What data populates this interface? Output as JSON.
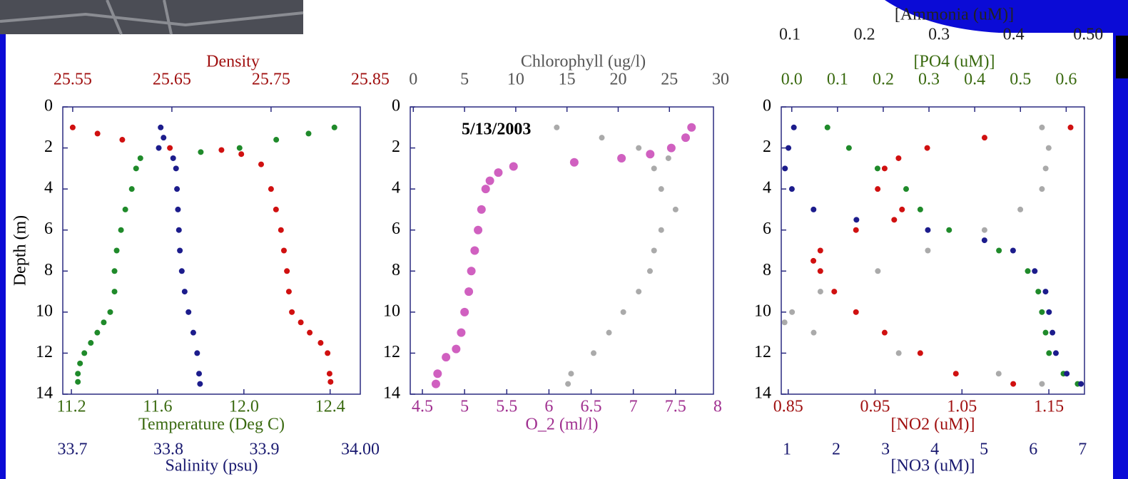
{
  "chart_data": [
    {
      "type": "scatter",
      "ylabel": "Depth (m)",
      "ylim": [
        0,
        14
      ],
      "yticks": [
        0,
        2,
        4,
        6,
        8,
        10,
        12,
        14
      ],
      "y_inverted": true,
      "series": [
        {
          "name": "Density",
          "color": "#d01010",
          "axis_color": "#a01010",
          "axis": "top",
          "xlim": [
            25.54,
            25.84
          ],
          "xticks": [
            25.55,
            25.65,
            25.75,
            25.85
          ],
          "y": [
            1,
            1.3,
            1.6,
            2,
            2.1,
            2.3,
            2.8,
            4,
            5,
            6,
            7,
            8,
            9,
            10,
            10.5,
            11,
            11.5,
            12,
            13,
            13.4
          ],
          "x": [
            25.55,
            25.575,
            25.6,
            25.648,
            25.7,
            25.72,
            25.74,
            25.75,
            25.755,
            25.76,
            25.763,
            25.766,
            25.768,
            25.771,
            25.78,
            25.789,
            25.8,
            25.807,
            25.809,
            25.81
          ]
        },
        {
          "name": "Temperature (Deg C)",
          "color": "#1f8a2a",
          "axis_color": "#3a6a10",
          "axis": "bottom",
          "xlim": [
            11.16,
            12.54
          ],
          "xticks": [
            11.2,
            11.6,
            {
              "value": 12,
              "label": "12.0"
            },
            12.4
          ],
          "y": [
            1,
            1.3,
            1.6,
            2,
            2.2,
            2.5,
            3,
            4,
            5,
            6,
            7,
            8,
            9,
            10,
            10.5,
            11,
            11.5,
            12,
            12.5,
            13,
            13.4
          ],
          "x": [
            12.42,
            12.3,
            12.15,
            11.98,
            11.8,
            11.52,
            11.5,
            11.48,
            11.45,
            11.43,
            11.41,
            11.4,
            11.4,
            11.38,
            11.35,
            11.32,
            11.29,
            11.26,
            11.24,
            11.23,
            11.23
          ]
        },
        {
          "name": "Salinity (psu)",
          "color": "#1c1c8c",
          "axis_color": "#1a1a70",
          "axis": "bottom",
          "xlim": [
            33.69,
            34.0
          ],
          "xticks": [
            33.7,
            33.8,
            33.9,
            {
              "value": 34,
              "label": "34.00"
            }
          ],
          "y": [
            1,
            1.5,
            2,
            2.5,
            3,
            4,
            5,
            6,
            7,
            8,
            9,
            10,
            11,
            12,
            13,
            13.5
          ],
          "x": [
            33.792,
            33.795,
            33.79,
            33.805,
            33.808,
            33.809,
            33.81,
            33.811,
            33.812,
            33.814,
            33.817,
            33.821,
            33.826,
            33.83,
            33.832,
            33.833
          ]
        }
      ]
    },
    {
      "type": "scatter",
      "ylim": [
        0,
        14
      ],
      "yticks": [
        0,
        2,
        4,
        6,
        8,
        10,
        12,
        14
      ],
      "y_inverted": true,
      "annotation": "5/13/2003",
      "series": [
        {
          "name": "Chlorophyll (ug/l)",
          "color": "#aaaaaa",
          "axis_color": "#555555",
          "axis": "top",
          "xlim": [
            -0.3,
            29.3
          ],
          "xticks": [
            0,
            5,
            10,
            15,
            20,
            25,
            30
          ],
          "y": [
            1,
            1.5,
            2,
            2.5,
            3,
            4,
            5,
            6,
            7,
            8,
            9,
            10,
            11,
            12,
            13,
            13.5
          ],
          "x": [
            14.0,
            18.4,
            22.0,
            24.9,
            23.5,
            24.2,
            25.6,
            24.2,
            23.5,
            23.1,
            22.0,
            20.5,
            19.1,
            17.6,
            15.4,
            15.1
          ]
        },
        {
          "name": "O_2 (ml/l)",
          "color": "#d060c0",
          "axis_color": "#a03090",
          "axis": "bottom",
          "xlim": [
            4.356,
            7.95
          ],
          "xticks": [
            4.5,
            5,
            5.5,
            6,
            6.5,
            7,
            7.5,
            8
          ],
          "y": [
            1,
            1.5,
            2,
            2.3,
            2.5,
            2.7,
            2.9,
            3.2,
            3.6,
            4,
            5,
            6,
            7,
            8,
            9,
            10,
            11,
            11.8,
            12.2,
            13,
            13.5
          ],
          "x": [
            7.69,
            7.62,
            7.45,
            7.2,
            6.86,
            6.3,
            5.58,
            5.4,
            5.3,
            5.25,
            5.2,
            5.16,
            5.12,
            5.08,
            5.05,
            5.0,
            4.96,
            4.9,
            4.78,
            4.68,
            4.66
          ]
        }
      ]
    },
    {
      "type": "scatter",
      "ylim": [
        0,
        14
      ],
      "yticks": [
        0,
        2,
        4,
        6,
        8,
        10,
        12,
        14
      ],
      "y_inverted": true,
      "series": [
        {
          "name": "[PO4 (uM)]",
          "color": "#1f8a2a",
          "axis_color": "#3a6a10",
          "axis": "top",
          "xlim": [
            -0.023,
            0.64
          ],
          "xticks": [
            {
              "value": 0,
              "label": "0.0"
            },
            0.1,
            0.2,
            0.3,
            0.4,
            0.5,
            0.6
          ],
          "y": [
            1,
            2,
            3,
            4,
            5,
            6,
            7,
            8,
            9,
            10,
            11,
            12,
            13,
            13.5
          ],
          "x": [
            0.078,
            0.125,
            0.1875,
            0.25,
            0.281,
            0.344,
            0.453,
            0.516,
            0.539,
            0.547,
            0.555,
            0.5625,
            0.594,
            0.625
          ]
        },
        {
          "name": "[Ammonia (uM)]",
          "color": "#aaaaaa",
          "axis_color": "#222222",
          "axis": "top",
          "xlim": [
            0.0885,
            0.495
          ],
          "xticks": [
            0.1,
            0.2,
            0.3,
            0.4,
            {
              "value": 0.5,
              "label": "0.50"
            }
          ],
          "y": [
            1,
            2,
            3,
            4,
            5,
            6,
            7,
            8,
            9,
            10,
            10.5,
            11,
            12,
            13,
            13.5
          ],
          "x": [
            0.438,
            0.447,
            0.443,
            0.438,
            0.409,
            0.361,
            0.285,
            0.218,
            0.141,
            0.103,
            0.093,
            0.132,
            0.246,
            0.38,
            0.438
          ]
        },
        {
          "name": "[NO2 (uM)]",
          "color": "#d01010",
          "axis_color": "#a01010",
          "axis": "bottom",
          "xlim": [
            0.842,
            1.191
          ],
          "xticks": [
            0.85,
            0.95,
            1.05,
            1.15
          ],
          "y": [
            1,
            1.5,
            2,
            2.5,
            3,
            4,
            5,
            5.5,
            6,
            7,
            7.5,
            8,
            9,
            10,
            11,
            12,
            13,
            13.5
          ],
          "x": [
            1.175,
            1.076,
            1.01,
            0.977,
            0.961,
            0.953,
            0.981,
            0.972,
            0.928,
            0.887,
            0.879,
            0.887,
            0.903,
            0.928,
            0.961,
            1.002,
            1.043,
            1.109
          ]
        },
        {
          "name": "[NO3 (uM)]",
          "color": "#1c1c8c",
          "axis_color": "#1a1a70",
          "axis": "bottom",
          "xlim": [
            0.884,
            7.04
          ],
          "xticks": [
            1,
            2,
            3,
            4,
            5,
            6,
            7
          ],
          "y": [
            1,
            2,
            3,
            4,
            5,
            5.5,
            6,
            6.5,
            7,
            8,
            9,
            10,
            11,
            12,
            13,
            13.5
          ],
          "x": [
            1.14,
            1.03,
            0.96,
            1.1,
            1.54,
            2.41,
            3.86,
            5.01,
            5.59,
            6.03,
            6.25,
            6.32,
            6.39,
            6.46,
            6.68,
            6.97
          ]
        }
      ]
    }
  ]
}
